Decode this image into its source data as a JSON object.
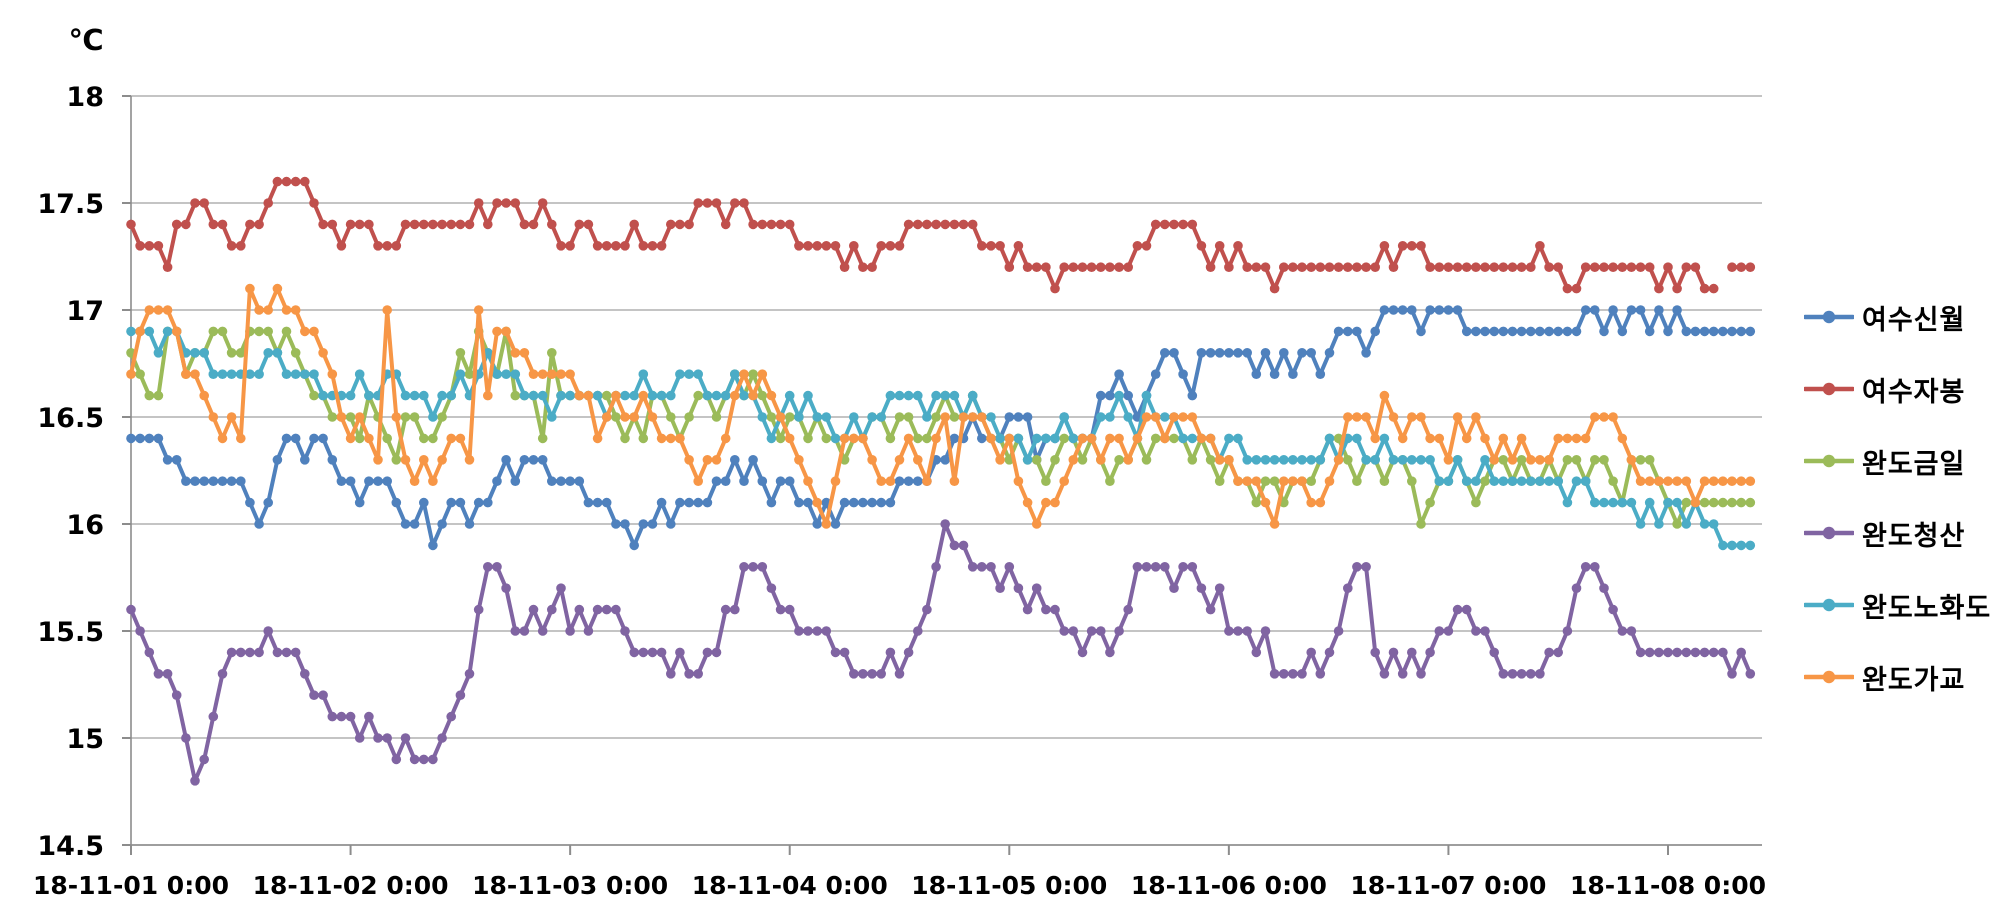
{
  "page": {
    "background": "#ffffff"
  },
  "chart_data": {
    "type": "line",
    "title": "",
    "legend_position": "right",
    "grid": true,
    "y_axis": {
      "unit_label": "℃",
      "min": 14.5,
      "max": 18,
      "tick_step": 0.5,
      "tick_labels_top_to_bottom": [
        "18",
        "17.5",
        "17",
        "16.5",
        "16",
        "15.5",
        "15",
        "14.5"
      ]
    },
    "x_axis": {
      "tick_labels": [
        "18-11-01 0:00",
        "18-11-02 0:00",
        "18-11-03 0:00",
        "18-11-04 0:00",
        "18-11-05 0:00",
        "18-11-06 0:00",
        "18-11-07 0:00",
        "18-11-08 0:00"
      ],
      "points_per_label_interval": 24,
      "interval": "1 hour",
      "total_points": 178
    },
    "colors": {
      "gridline": "#b0b0b0",
      "axis_line": "#8c8c8c",
      "text": "#000000"
    },
    "series": [
      {
        "name": "여수신월",
        "color": "#4F81BD",
        "values": [
          16.4,
          16.4,
          16.4,
          16.4,
          16.3,
          16.3,
          16.2,
          16.2,
          16.2,
          16.2,
          16.2,
          16.2,
          16.2,
          16.1,
          16.0,
          16.1,
          16.3,
          16.4,
          16.4,
          16.3,
          16.4,
          16.4,
          16.3,
          16.2,
          16.2,
          16.1,
          16.2,
          16.2,
          16.2,
          16.1,
          16.0,
          16.0,
          16.1,
          15.9,
          16.0,
          16.1,
          16.1,
          16.0,
          16.1,
          16.1,
          16.2,
          16.3,
          16.2,
          16.3,
          16.3,
          16.3,
          16.2,
          16.2,
          16.2,
          16.2,
          16.1,
          16.1,
          16.1,
          16.0,
          16.0,
          15.9,
          16.0,
          16.0,
          16.1,
          16.0,
          16.1,
          16.1,
          16.1,
          16.1,
          16.2,
          16.2,
          16.3,
          16.2,
          16.3,
          16.2,
          16.1,
          16.2,
          16.2,
          16.1,
          16.1,
          16.0,
          16.1,
          16.0,
          16.1,
          16.1,
          16.1,
          16.1,
          16.1,
          16.1,
          16.2,
          16.2,
          16.2,
          16.2,
          16.3,
          16.3,
          16.4,
          16.4,
          16.5,
          16.4,
          16.4,
          16.4,
          16.5,
          16.5,
          16.5,
          16.3,
          16.4,
          16.4,
          16.5,
          16.4,
          16.4,
          16.4,
          16.6,
          16.6,
          16.7,
          16.6,
          16.5,
          16.6,
          16.7,
          16.8,
          16.8,
          16.7,
          16.6,
          16.8,
          16.8,
          16.8,
          16.8,
          16.8,
          16.8,
          16.7,
          16.8,
          16.7,
          16.8,
          16.7,
          16.8,
          16.8,
          16.7,
          16.8,
          16.9,
          16.9,
          16.9,
          16.8,
          16.9,
          17.0,
          17.0,
          17.0,
          17.0,
          16.9,
          17.0,
          17.0,
          17.0,
          17.0,
          16.9,
          16.9,
          16.9,
          16.9,
          16.9,
          16.9,
          16.9,
          16.9,
          16.9,
          16.9,
          16.9,
          16.9,
          16.9,
          17.0,
          17.0,
          16.9,
          17.0,
          16.9,
          17.0,
          17.0,
          16.9,
          17.0,
          16.9,
          17.0,
          16.9,
          16.9,
          16.9,
          16.9,
          16.9,
          16.9,
          16.9,
          16.9
        ]
      },
      {
        "name": "여수자봉",
        "color": "#C0504D",
        "values": [
          17.4,
          17.3,
          17.3,
          17.3,
          17.2,
          17.4,
          17.4,
          17.5,
          17.5,
          17.4,
          17.4,
          17.3,
          17.3,
          17.4,
          17.4,
          17.5,
          17.6,
          17.6,
          17.6,
          17.6,
          17.5,
          17.4,
          17.4,
          17.3,
          17.4,
          17.4,
          17.4,
          17.3,
          17.3,
          17.3,
          17.4,
          17.4,
          17.4,
          17.4,
          17.4,
          17.4,
          17.4,
          17.4,
          17.5,
          17.4,
          17.5,
          17.5,
          17.5,
          17.4,
          17.4,
          17.5,
          17.4,
          17.3,
          17.3,
          17.4,
          17.4,
          17.3,
          17.3,
          17.3,
          17.3,
          17.4,
          17.3,
          17.3,
          17.3,
          17.4,
          17.4,
          17.4,
          17.5,
          17.5,
          17.5,
          17.4,
          17.5,
          17.5,
          17.4,
          17.4,
          17.4,
          17.4,
          17.4,
          17.3,
          17.3,
          17.3,
          17.3,
          17.3,
          17.2,
          17.3,
          17.2,
          17.2,
          17.3,
          17.3,
          17.3,
          17.4,
          17.4,
          17.4,
          17.4,
          17.4,
          17.4,
          17.4,
          17.4,
          17.3,
          17.3,
          17.3,
          17.2,
          17.3,
          17.2,
          17.2,
          17.2,
          17.1,
          17.2,
          17.2,
          17.2,
          17.2,
          17.2,
          17.2,
          17.2,
          17.2,
          17.3,
          17.3,
          17.4,
          17.4,
          17.4,
          17.4,
          17.4,
          17.3,
          17.2,
          17.3,
          17.2,
          17.3,
          17.2,
          17.2,
          17.2,
          17.1,
          17.2,
          17.2,
          17.2,
          17.2,
          17.2,
          17.2,
          17.2,
          17.2,
          17.2,
          17.2,
          17.2,
          17.3,
          17.2,
          17.3,
          17.3,
          17.3,
          17.2,
          17.2,
          17.2,
          17.2,
          17.2,
          17.2,
          17.2,
          17.2,
          17.2,
          17.2,
          17.2,
          17.2,
          17.3,
          17.2,
          17.2,
          17.1,
          17.1,
          17.2,
          17.2,
          17.2,
          17.2,
          17.2,
          17.2,
          17.2,
          17.2,
          17.1,
          17.2,
          17.1,
          17.2,
          17.2,
          17.1,
          17.1,
          null,
          17.2,
          17.2,
          17.2
        ]
      },
      {
        "name": "완도금일",
        "color": "#9BBB59",
        "values": [
          16.8,
          16.7,
          16.6,
          16.6,
          16.9,
          16.9,
          16.7,
          16.8,
          16.8,
          16.9,
          16.9,
          16.8,
          16.8,
          16.9,
          16.9,
          16.9,
          16.8,
          16.9,
          16.8,
          16.7,
          16.6,
          16.6,
          16.5,
          16.5,
          16.5,
          16.4,
          16.6,
          16.5,
          16.4,
          16.3,
          16.5,
          16.5,
          16.4,
          16.4,
          16.5,
          16.6,
          16.8,
          16.7,
          16.9,
          16.8,
          16.7,
          16.9,
          16.6,
          16.6,
          16.6,
          16.4,
          16.8,
          16.6,
          16.6,
          16.6,
          16.6,
          16.6,
          16.6,
          16.5,
          16.4,
          16.5,
          16.4,
          16.6,
          16.6,
          16.5,
          16.4,
          16.5,
          16.6,
          16.6,
          16.5,
          16.6,
          16.7,
          16.6,
          16.7,
          16.6,
          16.5,
          16.4,
          16.5,
          16.5,
          16.4,
          16.5,
          16.4,
          16.4,
          16.3,
          16.4,
          16.4,
          16.5,
          16.5,
          16.4,
          16.5,
          16.5,
          16.4,
          16.4,
          16.5,
          16.6,
          16.5,
          16.5,
          16.6,
          16.5,
          16.4,
          16.4,
          16.3,
          16.4,
          16.3,
          16.3,
          16.2,
          16.3,
          16.4,
          16.4,
          16.3,
          16.4,
          16.3,
          16.2,
          16.3,
          16.3,
          16.4,
          16.3,
          16.4,
          16.4,
          16.4,
          16.4,
          16.3,
          16.4,
          16.3,
          16.2,
          16.3,
          16.2,
          16.2,
          16.1,
          16.2,
          16.2,
          16.1,
          16.2,
          16.2,
          16.2,
          16.3,
          16.4,
          16.4,
          16.3,
          16.2,
          16.3,
          16.3,
          16.2,
          16.3,
          16.3,
          16.2,
          16.0,
          16.1,
          16.2,
          16.2,
          16.3,
          16.2,
          16.1,
          16.2,
          16.3,
          16.3,
          16.2,
          16.3,
          16.2,
          16.2,
          16.3,
          16.2,
          16.3,
          16.3,
          16.2,
          16.3,
          16.3,
          16.2,
          16.1,
          16.3,
          16.3,
          16.3,
          16.2,
          16.1,
          16.0,
          16.1,
          16.1,
          16.1,
          16.1,
          16.1,
          16.1,
          16.1,
          16.1
        ]
      },
      {
        "name": "완도청산",
        "color": "#8064A2",
        "values": [
          15.6,
          15.5,
          15.4,
          15.3,
          15.3,
          15.2,
          15.0,
          14.8,
          14.9,
          15.1,
          15.3,
          15.4,
          15.4,
          15.4,
          15.4,
          15.5,
          15.4,
          15.4,
          15.4,
          15.3,
          15.2,
          15.2,
          15.1,
          15.1,
          15.1,
          15.0,
          15.1,
          15.0,
          15.0,
          14.9,
          15.0,
          14.9,
          14.9,
          14.9,
          15.0,
          15.1,
          15.2,
          15.3,
          15.6,
          15.8,
          15.8,
          15.7,
          15.5,
          15.5,
          15.6,
          15.5,
          15.6,
          15.7,
          15.5,
          15.6,
          15.5,
          15.6,
          15.6,
          15.6,
          15.5,
          15.4,
          15.4,
          15.4,
          15.4,
          15.3,
          15.4,
          15.3,
          15.3,
          15.4,
          15.4,
          15.6,
          15.6,
          15.8,
          15.8,
          15.8,
          15.7,
          15.6,
          15.6,
          15.5,
          15.5,
          15.5,
          15.5,
          15.4,
          15.4,
          15.3,
          15.3,
          15.3,
          15.3,
          15.4,
          15.3,
          15.4,
          15.5,
          15.6,
          15.8,
          16.0,
          15.9,
          15.9,
          15.8,
          15.8,
          15.8,
          15.7,
          15.8,
          15.7,
          15.6,
          15.7,
          15.6,
          15.6,
          15.5,
          15.5,
          15.4,
          15.5,
          15.5,
          15.4,
          15.5,
          15.6,
          15.8,
          15.8,
          15.8,
          15.8,
          15.7,
          15.8,
          15.8,
          15.7,
          15.6,
          15.7,
          15.5,
          15.5,
          15.5,
          15.4,
          15.5,
          15.3,
          15.3,
          15.3,
          15.3,
          15.4,
          15.3,
          15.4,
          15.5,
          15.7,
          15.8,
          15.8,
          15.4,
          15.3,
          15.4,
          15.3,
          15.4,
          15.3,
          15.4,
          15.5,
          15.5,
          15.6,
          15.6,
          15.5,
          15.5,
          15.4,
          15.3,
          15.3,
          15.3,
          15.3,
          15.3,
          15.4,
          15.4,
          15.5,
          15.7,
          15.8,
          15.8,
          15.7,
          15.6,
          15.5,
          15.5,
          15.4,
          15.4,
          15.4,
          15.4,
          15.4,
          15.4,
          15.4,
          15.4,
          15.4,
          15.4,
          15.3,
          15.4,
          15.3
        ]
      },
      {
        "name": "완도노화도",
        "color": "#4BACC6",
        "values": [
          16.9,
          16.9,
          16.9,
          16.8,
          16.9,
          16.9,
          16.8,
          16.8,
          16.8,
          16.7,
          16.7,
          16.7,
          16.7,
          16.7,
          16.7,
          16.8,
          16.8,
          16.7,
          16.7,
          16.7,
          16.7,
          16.6,
          16.6,
          16.6,
          16.6,
          16.7,
          16.6,
          16.6,
          16.7,
          16.7,
          16.6,
          16.6,
          16.6,
          16.5,
          16.6,
          16.6,
          16.7,
          16.6,
          16.7,
          16.8,
          16.7,
          16.7,
          16.7,
          16.6,
          16.6,
          16.6,
          16.5,
          16.6,
          16.6,
          16.6,
          16.6,
          16.6,
          16.5,
          16.6,
          16.6,
          16.6,
          16.7,
          16.6,
          16.6,
          16.6,
          16.7,
          16.7,
          16.7,
          16.6,
          16.6,
          16.6,
          16.7,
          16.6,
          16.6,
          16.5,
          16.4,
          16.5,
          16.6,
          16.5,
          16.6,
          16.5,
          16.5,
          16.4,
          16.4,
          16.5,
          16.4,
          16.5,
          16.5,
          16.6,
          16.6,
          16.6,
          16.6,
          16.5,
          16.6,
          16.6,
          16.6,
          16.5,
          16.6,
          16.5,
          16.5,
          16.4,
          16.4,
          16.4,
          16.3,
          16.4,
          16.4,
          16.4,
          16.5,
          16.4,
          16.4,
          16.4,
          16.5,
          16.5,
          16.6,
          16.5,
          16.4,
          16.6,
          16.5,
          16.5,
          16.5,
          16.4,
          16.4,
          16.4,
          16.4,
          16.3,
          16.4,
          16.4,
          16.3,
          16.3,
          16.3,
          16.3,
          16.3,
          16.3,
          16.3,
          16.3,
          16.3,
          16.4,
          16.3,
          16.4,
          16.4,
          16.3,
          16.3,
          16.4,
          16.3,
          16.3,
          16.3,
          16.3,
          16.3,
          16.2,
          16.2,
          16.3,
          16.2,
          16.2,
          16.3,
          16.2,
          16.2,
          16.2,
          16.2,
          16.2,
          16.2,
          16.2,
          16.2,
          16.1,
          16.2,
          16.2,
          16.1,
          16.1,
          16.1,
          16.1,
          16.1,
          16.0,
          16.1,
          16.0,
          16.1,
          16.1,
          16.0,
          16.1,
          16.0,
          16.0,
          15.9,
          15.9,
          15.9,
          15.9
        ]
      },
      {
        "name": "완도가교",
        "color": "#F79646",
        "values": [
          16.7,
          16.9,
          17.0,
          17.0,
          17.0,
          16.9,
          16.7,
          16.7,
          16.6,
          16.5,
          16.4,
          16.5,
          16.4,
          17.1,
          17.0,
          17.0,
          17.1,
          17.0,
          17.0,
          16.9,
          16.9,
          16.8,
          16.7,
          16.5,
          16.4,
          16.5,
          16.4,
          16.3,
          17.0,
          16.5,
          16.3,
          16.2,
          16.3,
          16.2,
          16.3,
          16.4,
          16.4,
          16.3,
          17.0,
          16.6,
          16.9,
          16.9,
          16.8,
          16.8,
          16.7,
          16.7,
          16.7,
          16.7,
          16.7,
          16.6,
          16.6,
          16.4,
          16.5,
          16.6,
          16.5,
          16.5,
          16.6,
          16.5,
          16.4,
          16.4,
          16.4,
          16.3,
          16.2,
          16.3,
          16.3,
          16.4,
          16.6,
          16.7,
          16.6,
          16.7,
          16.6,
          16.5,
          16.4,
          16.3,
          16.2,
          16.1,
          16.0,
          16.2,
          16.4,
          16.4,
          16.4,
          16.3,
          16.2,
          16.2,
          16.3,
          16.4,
          16.3,
          16.2,
          16.4,
          16.5,
          16.2,
          16.5,
          16.5,
          16.5,
          16.4,
          16.3,
          16.4,
          16.2,
          16.1,
          16.0,
          16.1,
          16.1,
          16.2,
          16.3,
          16.4,
          16.4,
          16.3,
          16.4,
          16.4,
          16.3,
          16.4,
          16.5,
          16.5,
          16.4,
          16.5,
          16.5,
          16.5,
          16.4,
          16.4,
          16.3,
          16.3,
          16.2,
          16.2,
          16.2,
          16.1,
          16.0,
          16.2,
          16.2,
          16.2,
          16.1,
          16.1,
          16.2,
          16.3,
          16.5,
          16.5,
          16.5,
          16.4,
          16.6,
          16.5,
          16.4,
          16.5,
          16.5,
          16.4,
          16.4,
          16.3,
          16.5,
          16.4,
          16.5,
          16.4,
          16.3,
          16.4,
          16.3,
          16.4,
          16.3,
          16.3,
          16.3,
          16.4,
          16.4,
          16.4,
          16.4,
          16.5,
          16.5,
          16.5,
          16.4,
          16.3,
          16.2,
          16.2,
          16.2,
          16.2,
          16.2,
          16.2,
          16.1,
          16.2,
          16.2,
          16.2,
          16.2,
          16.2,
          16.2
        ]
      }
    ]
  }
}
